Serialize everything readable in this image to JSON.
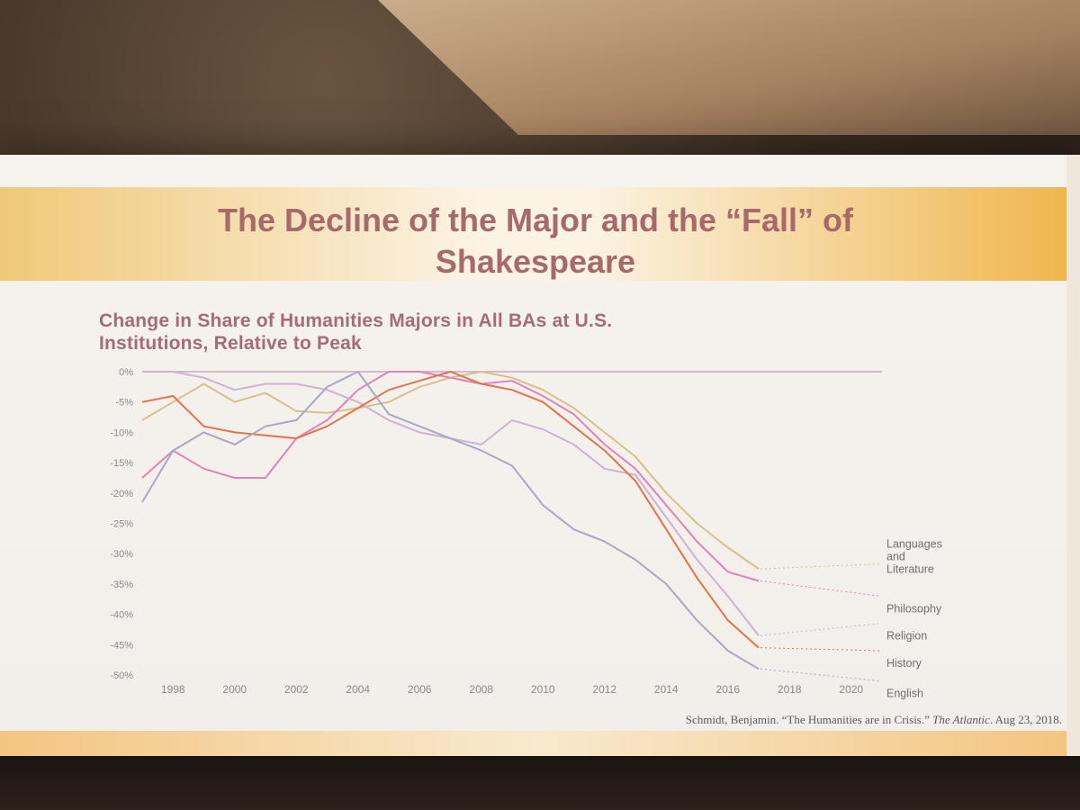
{
  "slide": {
    "title_line1": "The Decline of the Major and the “Fall” of",
    "title_line2": "Shakespeare",
    "chart_title_line1": "Change in Share of Humanities Majors in All BAs at U.S.",
    "chart_title_line2": "Institutions, Relative to Peak",
    "citation_prefix": "Schmidt, Benjamin. “The Humanities are in Crisis.” ",
    "citation_source": "The Atlantic",
    "citation_suffix": ". Aug 23, 2018."
  },
  "colors": {
    "title": "#a66a6a",
    "zero_line": "#c9a7c4",
    "languages": "#d9c08a",
    "philosophy": "#e083b8",
    "religion": "#cfb1d6",
    "history": "#e0744a",
    "english": "#a9a7c6"
  },
  "chart_data": {
    "type": "line",
    "title": "Change in Share of Humanities Majors in All BAs at U.S. Institutions, Relative to Peak",
    "xlabel": "",
    "ylabel": "",
    "xlim": [
      1997,
      2021
    ],
    "ylim": [
      -50,
      0
    ],
    "x_ticks": [
      1998,
      2000,
      2002,
      2004,
      2006,
      2008,
      2010,
      2012,
      2014,
      2016,
      2018,
      2020
    ],
    "y_ticks": [
      0,
      -5,
      -10,
      -15,
      -20,
      -25,
      -30,
      -35,
      -40,
      -45,
      -50
    ],
    "y_tick_labels": [
      "0%",
      "-5%",
      "-10%",
      "-15%",
      "-20%",
      "-25%",
      "-30%",
      "-35%",
      "-40%",
      "-45%",
      "-50%"
    ],
    "x": [
      1997,
      1998,
      1999,
      2000,
      2001,
      2002,
      2003,
      2004,
      2005,
      2006,
      2007,
      2008,
      2009,
      2010,
      2011,
      2012,
      2013,
      2014,
      2015,
      2016,
      2017
    ],
    "series": [
      {
        "name": "Languages and Literature",
        "label_lines": [
          "Languages",
          "and",
          "Literature"
        ],
        "color_key": "languages",
        "values": [
          -8,
          -5,
          -2,
          -5,
          -3.5,
          -6.5,
          -6.8,
          -6,
          -5,
          -2.5,
          -1,
          0,
          -1,
          -3,
          -6,
          -10,
          -14,
          -20,
          -25,
          -29,
          -32.5
        ]
      },
      {
        "name": "Philosophy",
        "label_lines": [
          "Philosophy"
        ],
        "color_key": "philosophy",
        "values": [
          -17.5,
          -13,
          -16,
          -17.5,
          -17.5,
          -11,
          -8,
          -3,
          0,
          0,
          -1,
          -2,
          -1.5,
          -4,
          -7,
          -12,
          -16,
          -22,
          -28,
          -33,
          -34.5
        ]
      },
      {
        "name": "Religion",
        "label_lines": [
          "Religion"
        ],
        "color_key": "religion",
        "values": [
          0,
          0,
          -1,
          -3,
          -2,
          -2,
          -3,
          -5,
          -8,
          -10,
          -11,
          -12,
          -8,
          -9.5,
          -12,
          -16,
          -17,
          -24,
          -31,
          -37,
          -43.5
        ]
      },
      {
        "name": "History",
        "label_lines": [
          "History"
        ],
        "color_key": "history",
        "values": [
          -5,
          -4,
          -9,
          -10,
          -10.5,
          -11,
          -9,
          -6,
          -3,
          -1.5,
          0,
          -2,
          -3,
          -5,
          -9,
          -13,
          -18,
          -26,
          -34,
          -41,
          -45.5
        ]
      },
      {
        "name": "English",
        "label_lines": [
          "English"
        ],
        "color_key": "english",
        "values": [
          -21.5,
          -13,
          -10,
          -12,
          -9,
          -8,
          -2.5,
          0,
          -7,
          -9,
          -11,
          -13,
          -15.5,
          -22,
          -26,
          -28,
          -31,
          -35,
          -41,
          -46,
          -49
        ]
      }
    ]
  }
}
